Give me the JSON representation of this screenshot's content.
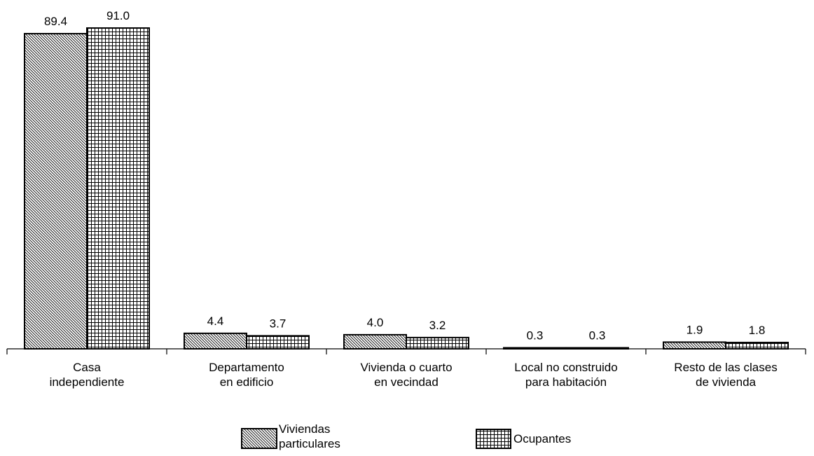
{
  "chart_data": {
    "type": "bar",
    "categories": [
      [
        "Casa",
        "independiente"
      ],
      [
        "Departamento",
        "en edificio"
      ],
      [
        "Vivienda o cuarto",
        "en vecindad"
      ],
      [
        "Local no construido",
        "para habitación"
      ],
      [
        "Resto de las clases",
        "de vivienda"
      ]
    ],
    "series": [
      {
        "name": [
          "Viviendas",
          "particulares"
        ],
        "pattern": "diagonal",
        "values": [
          89.4,
          4.4,
          4.0,
          0.3,
          1.9
        ],
        "labels": [
          "89.4",
          "4.4",
          "4.0",
          "0.3",
          "1.9"
        ]
      },
      {
        "name": [
          "Ocupantes"
        ],
        "pattern": "grid",
        "values": [
          91.0,
          3.7,
          3.2,
          0.3,
          1.8
        ],
        "labels": [
          "91.0",
          "3.7",
          "3.2",
          "0.3",
          "1.8"
        ]
      }
    ],
    "ylim": [
      0,
      100
    ],
    "grid": false,
    "legend_position": "bottom-center"
  },
  "colors": {
    "bar_stroke": "#000000",
    "pattern_line": "#000000",
    "background": "#ffffff"
  }
}
